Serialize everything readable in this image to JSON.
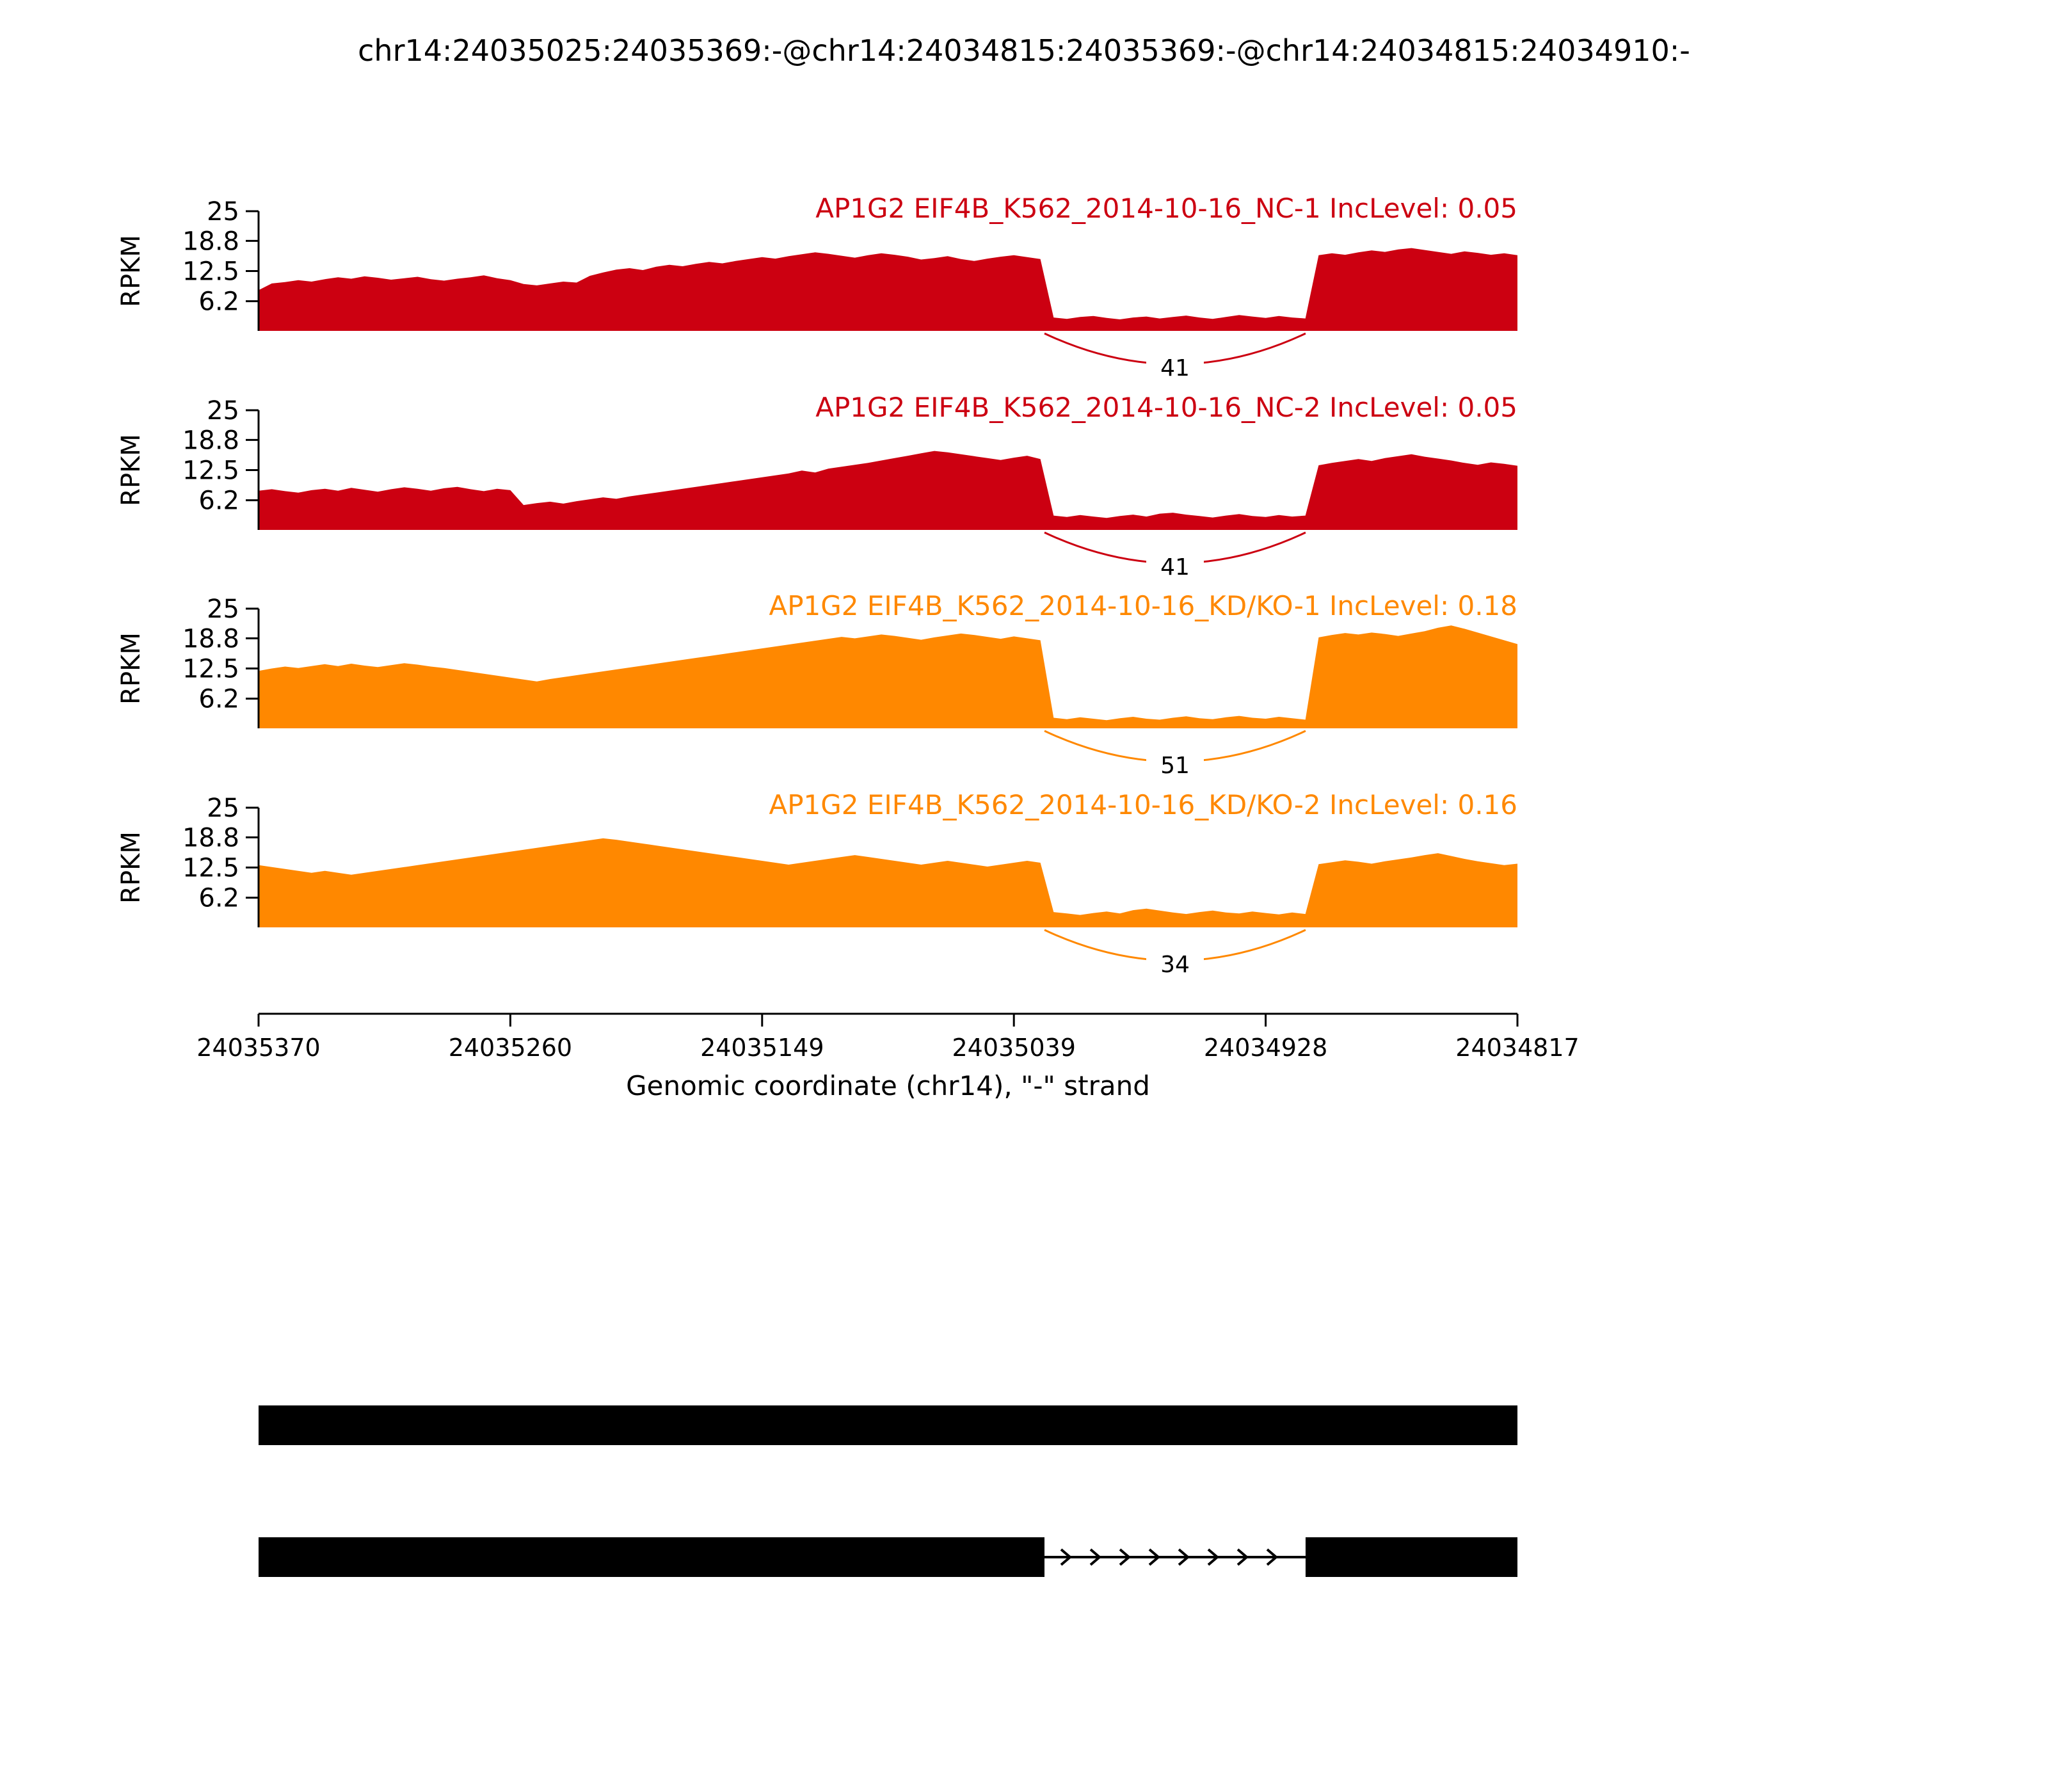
{
  "page": {
    "title": "chr14:24035025:24035369:-@chr14:24034815:24035369:-@chr14:24034815:24034910:-"
  },
  "chart_data": {
    "type": "area",
    "title": "chr14:24035025:24035369:-@chr14:24034815:24035369:-@chr14:24034815:24034910:-",
    "xlabel": "Genomic coordinate (chr14), \"-\" strand",
    "ylabel": "RPKM",
    "ylim": [
      0,
      25
    ],
    "yticks": [
      {
        "label": "25",
        "value": 25
      },
      {
        "label": "18.8",
        "value": 18.8
      },
      {
        "label": "12.5",
        "value": 12.5
      },
      {
        "label": "6.2",
        "value": 6.2
      }
    ],
    "xticks": [
      "24035370",
      "24035260",
      "24035149",
      "24035039",
      "24034928",
      "24034817"
    ],
    "colors": {
      "nc_red": "#CC0011",
      "kd_orange": "#FF8800"
    },
    "junction_span": {
      "start_frac": 0.6243,
      "end_frac": 0.8317
    },
    "tracks": [
      {
        "label": "AP1G2 EIF4B_K562_2014-10-16_NC-1 IncLevel: 0.05",
        "color": "#CC0011",
        "junction_count": 41,
        "coverage": [
          8.5,
          9.9,
          10.2,
          10.6,
          10.3,
          10.8,
          11.2,
          10.9,
          11.4,
          11.1,
          10.7,
          11.0,
          11.3,
          10.8,
          10.5,
          10.9,
          11.2,
          11.6,
          11.0,
          10.6,
          9.8,
          9.5,
          9.9,
          10.3,
          10.1,
          11.5,
          12.2,
          12.8,
          13.1,
          12.7,
          13.4,
          13.8,
          13.5,
          14.0,
          14.4,
          14.1,
          14.6,
          15.0,
          15.4,
          15.1,
          15.6,
          16.0,
          16.4,
          16.1,
          15.7,
          15.3,
          15.8,
          16.2,
          15.9,
          15.5,
          14.9,
          15.2,
          15.6,
          15.0,
          14.6,
          15.1,
          15.5,
          15.8,
          15.4,
          15.0,
          2.8,
          2.5,
          2.9,
          3.1,
          2.7,
          2.4,
          2.8,
          3.0,
          2.6,
          2.9,
          3.2,
          2.8,
          2.5,
          2.9,
          3.3,
          3.0,
          2.7,
          3.1,
          2.8,
          2.6,
          15.8,
          16.2,
          15.9,
          16.4,
          16.8,
          16.5,
          17.0,
          17.3,
          16.9,
          16.5,
          16.1,
          16.6,
          16.3,
          15.9,
          16.2,
          15.8
        ]
      },
      {
        "label": "AP1G2 EIF4B_K562_2014-10-16_NC-2 IncLevel: 0.05",
        "color": "#CC0011",
        "junction_count": 41,
        "coverage": [
          8.2,
          8.5,
          8.1,
          7.8,
          8.3,
          8.6,
          8.2,
          8.8,
          8.4,
          8.0,
          8.5,
          8.9,
          8.6,
          8.2,
          8.7,
          9.0,
          8.5,
          8.1,
          8.6,
          8.3,
          5.2,
          5.6,
          5.9,
          5.5,
          6.0,
          6.4,
          6.8,
          6.5,
          7.0,
          7.4,
          7.8,
          8.2,
          8.6,
          9.0,
          9.4,
          9.8,
          10.2,
          10.6,
          11.0,
          11.4,
          11.8,
          12.4,
          12.0,
          12.8,
          13.2,
          13.6,
          14.0,
          14.5,
          15.0,
          15.5,
          16.0,
          16.5,
          16.2,
          15.8,
          15.4,
          15.0,
          14.6,
          15.1,
          15.5,
          14.8,
          3.0,
          2.7,
          3.1,
          2.8,
          2.5,
          2.9,
          3.2,
          2.8,
          3.4,
          3.6,
          3.2,
          2.9,
          2.6,
          3.0,
          3.3,
          2.9,
          2.7,
          3.1,
          2.8,
          3.0,
          13.5,
          14.0,
          14.4,
          14.8,
          14.4,
          15.0,
          15.4,
          15.8,
          15.3,
          14.9,
          14.5,
          14.0,
          13.6,
          14.1,
          13.8,
          13.4
        ]
      },
      {
        "label": "AP1G2 EIF4B_K562_2014-10-16_KD/KO-1 IncLevel: 0.18",
        "color": "#FF8800",
        "junction_count": 51,
        "coverage": [
          12.0,
          12.5,
          12.9,
          12.6,
          13.0,
          13.4,
          13.0,
          13.5,
          13.1,
          12.8,
          13.2,
          13.6,
          13.3,
          12.9,
          12.6,
          12.2,
          11.8,
          11.4,
          11.0,
          10.6,
          10.2,
          9.8,
          10.3,
          10.7,
          11.1,
          11.5,
          11.9,
          12.3,
          12.7,
          13.1,
          13.5,
          13.9,
          14.3,
          14.7,
          15.1,
          15.5,
          15.9,
          16.3,
          16.7,
          17.1,
          17.5,
          17.9,
          18.3,
          18.7,
          19.1,
          18.8,
          19.2,
          19.6,
          19.3,
          18.9,
          18.5,
          19.0,
          19.4,
          19.8,
          19.5,
          19.1,
          18.7,
          19.2,
          18.8,
          18.4,
          2.2,
          1.9,
          2.3,
          2.0,
          1.7,
          2.1,
          2.4,
          2.0,
          1.8,
          2.2,
          2.5,
          2.1,
          1.9,
          2.3,
          2.6,
          2.2,
          2.0,
          2.4,
          2.1,
          1.8,
          19.0,
          19.5,
          19.9,
          19.6,
          20.0,
          19.7,
          19.3,
          19.8,
          20.3,
          21.0,
          21.5,
          20.8,
          20.0,
          19.2,
          18.4,
          17.6
        ]
      },
      {
        "label": "AP1G2 EIF4B_K562_2014-10-16_KD/KO-2 IncLevel: 0.16",
        "color": "#FF8800",
        "junction_count": 34,
        "coverage": [
          13.0,
          12.6,
          12.2,
          11.8,
          11.4,
          11.8,
          11.4,
          11.0,
          11.4,
          11.8,
          12.2,
          12.6,
          13.0,
          13.4,
          13.8,
          14.2,
          14.6,
          15.0,
          15.4,
          15.8,
          16.2,
          16.6,
          17.0,
          17.4,
          17.8,
          18.2,
          18.6,
          18.3,
          17.9,
          17.5,
          17.1,
          16.7,
          16.3,
          15.9,
          15.5,
          15.1,
          14.7,
          14.3,
          13.9,
          13.5,
          13.1,
          13.5,
          13.9,
          14.3,
          14.7,
          15.1,
          14.7,
          14.3,
          13.9,
          13.5,
          13.1,
          13.5,
          13.9,
          13.5,
          13.1,
          12.7,
          13.1,
          13.5,
          13.9,
          13.5,
          3.2,
          2.9,
          2.6,
          3.0,
          3.3,
          2.9,
          3.6,
          3.9,
          3.5,
          3.1,
          2.8,
          3.2,
          3.5,
          3.1,
          2.9,
          3.3,
          3.0,
          2.7,
          3.1,
          2.8,
          13.2,
          13.6,
          14.0,
          13.7,
          13.3,
          13.8,
          14.2,
          14.6,
          15.1,
          15.5,
          14.9,
          14.3,
          13.8,
          13.4,
          13.0,
          13.3
        ]
      }
    ],
    "isoforms": [
      {
        "name": "inclusion-isoform",
        "exons": [
          [
            0,
            1
          ]
        ]
      },
      {
        "name": "skipping-isoform",
        "exons": [
          [
            0,
            0.6243
          ],
          [
            0.8317,
            1
          ]
        ],
        "intron": [
          0.6243,
          0.8317
        ]
      }
    ]
  }
}
